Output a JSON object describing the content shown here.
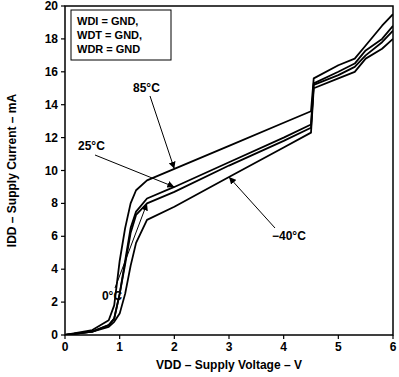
{
  "chart_data": {
    "type": "line",
    "x_label": "VDD – Supply Voltage – V",
    "y_label": "IDD – Supply Current – mA",
    "annotations": [
      "WDI = GND,",
      "WDT = GND,",
      "WDR = GND"
    ],
    "x": [
      0,
      0.5,
      0.8,
      0.9,
      1.0,
      1.1,
      1.2,
      1.3,
      1.5,
      2,
      3,
      4,
      4.5,
      4.55,
      5,
      5.3,
      5.5,
      5.8,
      6
    ],
    "series": [
      {
        "name": "85°C",
        "color": "#000000",
        "values": [
          0,
          0.3,
          0.9,
          1.8,
          4.5,
          6.5,
          8,
          8.8,
          9.4,
          10.1,
          11.5,
          12.9,
          13.6,
          15.6,
          16.4,
          16.8,
          17.6,
          18.8,
          19.5
        ]
      },
      {
        "name": "25°C",
        "color": "#000000",
        "values": [
          0,
          0.2,
          0.6,
          1.0,
          2.5,
          4.5,
          6.5,
          7.5,
          8.3,
          9.0,
          10.5,
          12.0,
          12.8,
          15.3,
          16.0,
          16.5,
          17.3,
          18.0,
          18.8
        ]
      },
      {
        "name": "0°C",
        "color": "#000000",
        "values": [
          0,
          0.2,
          0.6,
          1.0,
          2.5,
          4.3,
          6.2,
          7.3,
          8.0,
          8.7,
          10.3,
          11.8,
          12.6,
          15.2,
          15.8,
          16.3,
          17.0,
          17.8,
          18.5
        ]
      },
      {
        "name": "−40°C",
        "color": "#000000",
        "values": [
          0,
          0.2,
          0.5,
          0.8,
          1.3,
          2.5,
          4.2,
          5.6,
          7.0,
          7.8,
          9.6,
          11.4,
          12.3,
          15.0,
          15.6,
          16.0,
          16.8,
          17.4,
          18.0
        ]
      }
    ],
    "xlim": [
      0,
      6
    ],
    "ylim": [
      0,
      20
    ],
    "xticks": [
      0,
      1,
      2,
      3,
      4,
      5,
      6
    ],
    "yticks": [
      0,
      2,
      4,
      6,
      8,
      10,
      12,
      14,
      16,
      18,
      20
    ],
    "grid": false
  }
}
